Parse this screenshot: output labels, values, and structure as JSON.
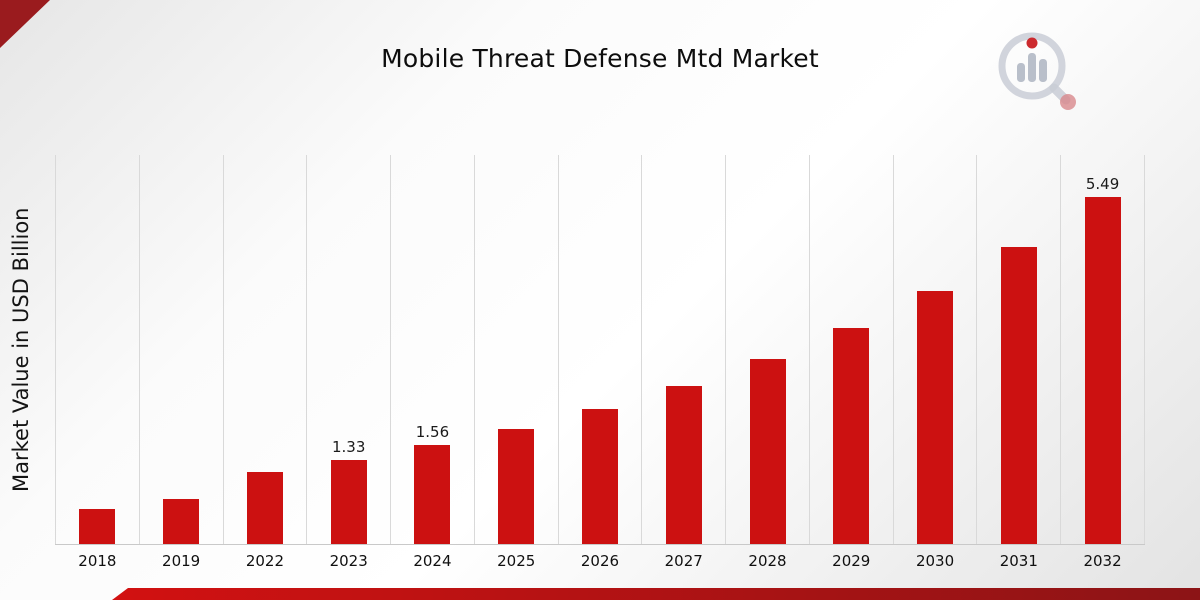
{
  "page": {
    "title": "Mobile Threat Defense Mtd Market"
  },
  "chart_data": {
    "type": "bar",
    "title": "Mobile Threat Defense Mtd Market",
    "xlabel": "",
    "ylabel": "Market Value in USD Billion",
    "unit": "USD Billion",
    "categories": [
      "2018",
      "2019",
      "2022",
      "2023",
      "2024",
      "2025",
      "2026",
      "2027",
      "2028",
      "2029",
      "2030",
      "2031",
      "2032"
    ],
    "values": [
      0.55,
      0.71,
      1.14,
      1.33,
      1.56,
      1.82,
      2.13,
      2.5,
      2.92,
      3.42,
      4.0,
      4.69,
      5.49
    ],
    "bar_labels": [
      "",
      "",
      "",
      "1.33",
      "1.56",
      "",
      "",
      "",
      "",
      "",
      "",
      "",
      "5.49"
    ],
    "ylim": [
      0,
      6.15
    ],
    "grid": "vertical-gridlines",
    "legend": "none"
  },
  "theme": {
    "bar-color": "#cc1111",
    "accent-dark-red": "#9a1b1e",
    "ribbon-gradient-start": "#d21111",
    "ribbon-gradient-end": "#8c1416",
    "gridline-color": "#d9d9d9",
    "axis-line-color": "#c9c9c9",
    "text-color": "#111111"
  }
}
